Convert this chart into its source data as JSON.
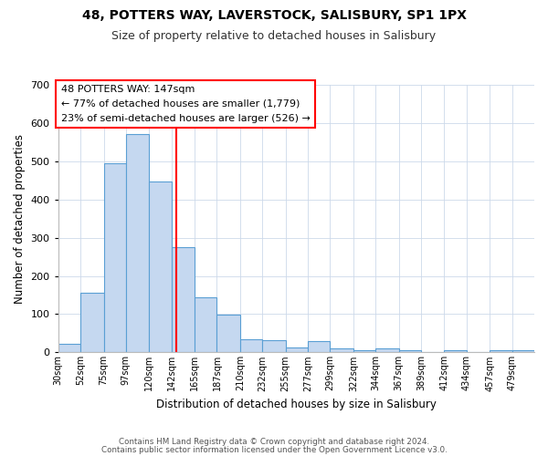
{
  "title1": "48, POTTERS WAY, LAVERSTOCK, SALISBURY, SP1 1PX",
  "title2": "Size of property relative to detached houses in Salisbury",
  "xlabel": "Distribution of detached houses by size in Salisbury",
  "ylabel": "Number of detached properties",
  "bar_labels": [
    "30sqm",
    "52sqm",
    "75sqm",
    "97sqm",
    "120sqm",
    "142sqm",
    "165sqm",
    "187sqm",
    "210sqm",
    "232sqm",
    "255sqm",
    "277sqm",
    "299sqm",
    "322sqm",
    "344sqm",
    "367sqm",
    "389sqm",
    "412sqm",
    "434sqm",
    "457sqm",
    "479sqm"
  ],
  "bar_values": [
    22,
    155,
    495,
    570,
    447,
    275,
    145,
    98,
    35,
    32,
    12,
    30,
    10,
    5,
    10,
    5,
    0,
    5,
    0,
    5,
    5
  ],
  "bar_edges": [
    30,
    52,
    75,
    97,
    120,
    142,
    165,
    187,
    210,
    232,
    255,
    277,
    299,
    322,
    344,
    367,
    389,
    412,
    434,
    457,
    479,
    501
  ],
  "bar_color": "#c5d8f0",
  "bar_edgecolor": "#5a9fd4",
  "vline_x": 147,
  "vline_color": "red",
  "ylim": [
    0,
    700
  ],
  "yticks": [
    0,
    100,
    200,
    300,
    400,
    500,
    600,
    700
  ],
  "annotation_title": "48 POTTERS WAY: 147sqm",
  "annotation_line1": "← 77% of detached houses are smaller (1,779)",
  "annotation_line2": "23% of semi-detached houses are larger (526) →",
  "footer1": "Contains HM Land Registry data © Crown copyright and database right 2024.",
  "footer2": "Contains public sector information licensed under the Open Government Licence v3.0."
}
